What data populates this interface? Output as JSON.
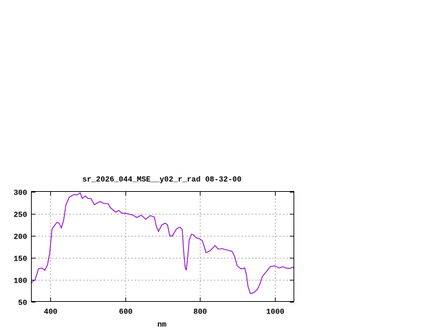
{
  "chart_data": {
    "type": "line",
    "title": "sr_2026_044_MSE__y02_r_rad 08-32-00",
    "xlabel": "nm",
    "ylabel": "",
    "xlim": [
      350,
      1050
    ],
    "ylim": [
      50,
      300
    ],
    "xticks": [
      400,
      600,
      800,
      1000
    ],
    "yticks": [
      50,
      100,
      150,
      200,
      250,
      300
    ],
    "grid": true,
    "line_color": "#9400d3",
    "series": [
      {
        "x": [
          350,
          352,
          360,
          369,
          378,
          386,
          393,
          399,
          405,
          418,
          424,
          430,
          436,
          442,
          451,
          463,
          472,
          480,
          486,
          494,
          501,
          509,
          518,
          533,
          543,
          555,
          561,
          575,
          583,
          591,
          603,
          622,
          631,
          643,
          655,
          667,
          678,
          683,
          689,
          698,
          707,
          713,
          719,
          726,
          737,
          746,
          752,
          757,
          760,
          763,
          767,
          771,
          777,
          783,
          789,
          798,
          806,
          816,
          826,
          840,
          848,
          859,
          871,
          885,
          891,
          899,
          909,
          919,
          923,
          928,
          934,
          943,
          953,
          960,
          966,
          975,
          987,
          999,
          1011,
          1020,
          1029,
          1039,
          1047,
          1050
        ],
        "y": [
          92,
          94,
          99,
          124,
          126,
          121,
          133,
          161,
          214,
          230,
          228,
          217,
          234,
          269,
          287,
          293,
          292,
          297,
          284,
          290,
          284,
          284,
          270,
          277,
          273,
          272,
          263,
          253,
          257,
          251,
          250,
          246,
          241,
          246,
          237,
          245,
          242,
          221,
          209,
          224,
          228,
          224,
          199,
          199,
          215,
          219,
          214,
          156,
          128,
          121,
          152,
          190,
          203,
          201,
          195,
          193,
          188,
          161,
          165,
          177,
          169,
          170,
          167,
          164,
          154,
          131,
          124,
          126,
          112,
          83,
          68,
          70,
          78,
          91,
          107,
          116,
          129,
          131,
          126,
          129,
          126,
          125,
          128,
          126
        ]
      }
    ]
  }
}
